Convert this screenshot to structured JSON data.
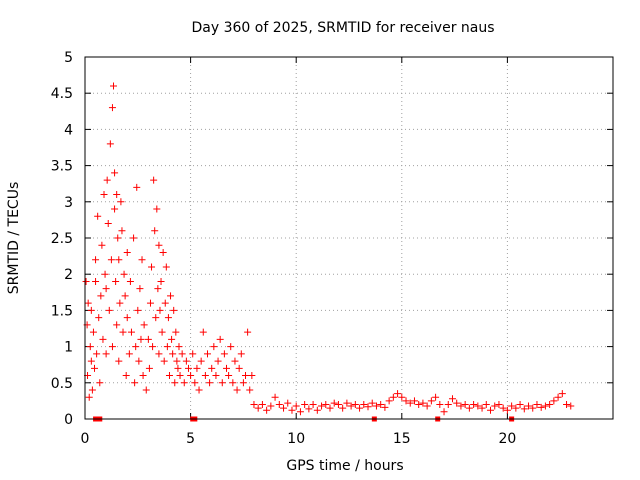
{
  "chart_data": {
    "type": "scatter",
    "title": "Day 360 of 2025, SRMTID for receiver naus",
    "xlabel": "GPS time / hours",
    "ylabel": "SRMTID / TECUs",
    "xlim": [
      0,
      25
    ],
    "ylim": [
      0,
      5
    ],
    "x_ticks": [
      0,
      5,
      10,
      15,
      20
    ],
    "y_ticks": [
      0,
      0.5,
      1,
      1.5,
      2,
      2.5,
      3,
      3.5,
      4,
      4.5,
      5
    ],
    "grid": true,
    "marker": "plus",
    "color": "#ff0000",
    "series": [
      {
        "name": "SRMTID",
        "points": [
          [
            0.05,
            1.9
          ],
          [
            0.1,
            1.3
          ],
          [
            0.12,
            0.6
          ],
          [
            0.15,
            1.6
          ],
          [
            0.2,
            0.3
          ],
          [
            0.25,
            1.0
          ],
          [
            0.3,
            0.8
          ],
          [
            0.3,
            1.5
          ],
          [
            0.35,
            0.4
          ],
          [
            0.4,
            1.2
          ],
          [
            0.45,
            0.7
          ],
          [
            0.5,
            2.2
          ],
          [
            0.5,
            1.9
          ],
          [
            0.55,
            0.9
          ],
          [
            0.6,
            2.8
          ],
          [
            0.65,
            1.4
          ],
          [
            0.7,
            0.5
          ],
          [
            0.75,
            1.7
          ],
          [
            0.8,
            2.4
          ],
          [
            0.85,
            1.1
          ],
          [
            0.9,
            3.1
          ],
          [
            0.95,
            2.0
          ],
          [
            1.0,
            0.9
          ],
          [
            1.0,
            1.8
          ],
          [
            1.05,
            3.3
          ],
          [
            1.1,
            2.7
          ],
          [
            1.15,
            1.5
          ],
          [
            1.2,
            3.8
          ],
          [
            1.25,
            2.2
          ],
          [
            1.3,
            1.0
          ],
          [
            1.3,
            4.3
          ],
          [
            1.35,
            4.6
          ],
          [
            1.4,
            3.4
          ],
          [
            1.4,
            2.9
          ],
          [
            1.45,
            1.9
          ],
          [
            1.5,
            1.3
          ],
          [
            1.5,
            3.1
          ],
          [
            1.55,
            2.5
          ],
          [
            1.6,
            0.8
          ],
          [
            1.6,
            2.2
          ],
          [
            1.65,
            1.6
          ],
          [
            1.7,
            3.0
          ],
          [
            1.75,
            2.6
          ],
          [
            1.8,
            1.2
          ],
          [
            1.85,
            2.0
          ],
          [
            1.9,
            1.7
          ],
          [
            1.95,
            0.6
          ],
          [
            2.0,
            1.4
          ],
          [
            2.0,
            2.3
          ],
          [
            2.1,
            0.9
          ],
          [
            2.15,
            1.9
          ],
          [
            2.2,
            1.2
          ],
          [
            2.3,
            2.5
          ],
          [
            2.35,
            0.5
          ],
          [
            2.4,
            1.0
          ],
          [
            2.45,
            3.2
          ],
          [
            2.5,
            1.5
          ],
          [
            2.55,
            0.8
          ],
          [
            2.6,
            1.8
          ],
          [
            2.65,
            1.1
          ],
          [
            2.7,
            2.2
          ],
          [
            2.75,
            0.6
          ],
          [
            2.8,
            1.3
          ],
          [
            2.9,
            0.4
          ],
          [
            3.0,
            1.1
          ],
          [
            3.05,
            0.7
          ],
          [
            3.1,
            1.6
          ],
          [
            3.15,
            2.1
          ],
          [
            3.2,
            1.0
          ],
          [
            3.25,
            3.3
          ],
          [
            3.3,
            2.6
          ],
          [
            3.35,
            1.4
          ],
          [
            3.4,
            2.9
          ],
          [
            3.45,
            1.8
          ],
          [
            3.5,
            0.9
          ],
          [
            3.5,
            2.4
          ],
          [
            3.55,
            1.5
          ],
          [
            3.6,
            1.9
          ],
          [
            3.65,
            1.2
          ],
          [
            3.7,
            2.3
          ],
          [
            3.75,
            0.8
          ],
          [
            3.8,
            1.6
          ],
          [
            3.85,
            2.1
          ],
          [
            3.9,
            1.0
          ],
          [
            3.95,
            1.4
          ],
          [
            4.0,
            0.6
          ],
          [
            4.05,
            1.7
          ],
          [
            4.1,
            1.1
          ],
          [
            4.15,
            0.9
          ],
          [
            4.2,
            1.5
          ],
          [
            4.25,
            0.5
          ],
          [
            4.3,
            1.2
          ],
          [
            4.35,
            0.8
          ],
          [
            4.4,
            0.7
          ],
          [
            4.45,
            1.0
          ],
          [
            4.5,
            0.6
          ],
          [
            4.6,
            0.9
          ],
          [
            4.7,
            0.5
          ],
          [
            4.8,
            0.8
          ],
          [
            4.9,
            0.7
          ],
          [
            5.0,
            0.6
          ],
          [
            5.1,
            0.9
          ],
          [
            5.2,
            0.5
          ],
          [
            5.3,
            0.7
          ],
          [
            5.4,
            0.4
          ],
          [
            5.5,
            0.8
          ],
          [
            5.6,
            1.2
          ],
          [
            5.7,
            0.6
          ],
          [
            5.8,
            0.9
          ],
          [
            5.9,
            0.5
          ],
          [
            6.0,
            0.7
          ],
          [
            6.1,
            1.0
          ],
          [
            6.2,
            0.6
          ],
          [
            6.3,
            0.8
          ],
          [
            6.4,
            1.1
          ],
          [
            6.5,
            0.5
          ],
          [
            6.6,
            0.9
          ],
          [
            6.7,
            0.7
          ],
          [
            6.8,
            0.6
          ],
          [
            6.9,
            1.0
          ],
          [
            7.0,
            0.5
          ],
          [
            7.1,
            0.8
          ],
          [
            7.2,
            0.4
          ],
          [
            7.3,
            0.7
          ],
          [
            7.4,
            0.9
          ],
          [
            7.5,
            0.5
          ],
          [
            7.6,
            0.6
          ],
          [
            7.7,
            1.2
          ],
          [
            7.8,
            0.4
          ],
          [
            7.9,
            0.6
          ],
          [
            8.0,
            0.2
          ],
          [
            8.2,
            0.15
          ],
          [
            8.4,
            0.2
          ],
          [
            8.6,
            0.12
          ],
          [
            8.8,
            0.18
          ],
          [
            9.0,
            0.3
          ],
          [
            9.2,
            0.2
          ],
          [
            9.4,
            0.15
          ],
          [
            9.6,
            0.22
          ],
          [
            9.8,
            0.12
          ],
          [
            10.0,
            0.18
          ],
          [
            10.2,
            0.1
          ],
          [
            10.4,
            0.2
          ],
          [
            10.6,
            0.14
          ],
          [
            10.8,
            0.2
          ],
          [
            11.0,
            0.12
          ],
          [
            11.2,
            0.18
          ],
          [
            11.4,
            0.2
          ],
          [
            11.6,
            0.15
          ],
          [
            11.8,
            0.22
          ],
          [
            12.0,
            0.2
          ],
          [
            12.2,
            0.15
          ],
          [
            12.4,
            0.22
          ],
          [
            12.6,
            0.18
          ],
          [
            12.8,
            0.2
          ],
          [
            13.0,
            0.15
          ],
          [
            13.2,
            0.2
          ],
          [
            13.4,
            0.17
          ],
          [
            13.6,
            0.22
          ],
          [
            13.8,
            0.18
          ],
          [
            14.0,
            0.2
          ],
          [
            14.2,
            0.16
          ],
          [
            14.4,
            0.25
          ],
          [
            14.6,
            0.3
          ],
          [
            14.8,
            0.35
          ],
          [
            15.0,
            0.3
          ],
          [
            15.2,
            0.25
          ],
          [
            15.4,
            0.22
          ],
          [
            15.6,
            0.25
          ],
          [
            15.8,
            0.2
          ],
          [
            16.0,
            0.22
          ],
          [
            16.2,
            0.18
          ],
          [
            16.4,
            0.25
          ],
          [
            16.6,
            0.3
          ],
          [
            16.8,
            0.2
          ],
          [
            17.0,
            0.1
          ],
          [
            17.2,
            0.2
          ],
          [
            17.4,
            0.28
          ],
          [
            17.6,
            0.22
          ],
          [
            17.8,
            0.18
          ],
          [
            18.0,
            0.2
          ],
          [
            18.2,
            0.15
          ],
          [
            18.4,
            0.2
          ],
          [
            18.6,
            0.18
          ],
          [
            18.8,
            0.15
          ],
          [
            19.0,
            0.2
          ],
          [
            19.2,
            0.12
          ],
          [
            19.4,
            0.18
          ],
          [
            19.6,
            0.2
          ],
          [
            19.8,
            0.15
          ],
          [
            20.0,
            0.12
          ],
          [
            20.2,
            0.18
          ],
          [
            20.4,
            0.15
          ],
          [
            20.6,
            0.2
          ],
          [
            20.8,
            0.14
          ],
          [
            21.0,
            0.18
          ],
          [
            21.2,
            0.15
          ],
          [
            21.4,
            0.2
          ],
          [
            21.6,
            0.16
          ],
          [
            21.8,
            0.18
          ],
          [
            22.0,
            0.2
          ],
          [
            22.2,
            0.25
          ],
          [
            22.4,
            0.3
          ],
          [
            22.6,
            0.35
          ],
          [
            22.8,
            0.2
          ],
          [
            23.0,
            0.18
          ]
        ]
      }
    ],
    "baseline_markers_x": [
      0.5,
      0.6,
      0.7,
      5.1,
      5.2,
      13.7,
      16.7,
      20.2
    ]
  }
}
